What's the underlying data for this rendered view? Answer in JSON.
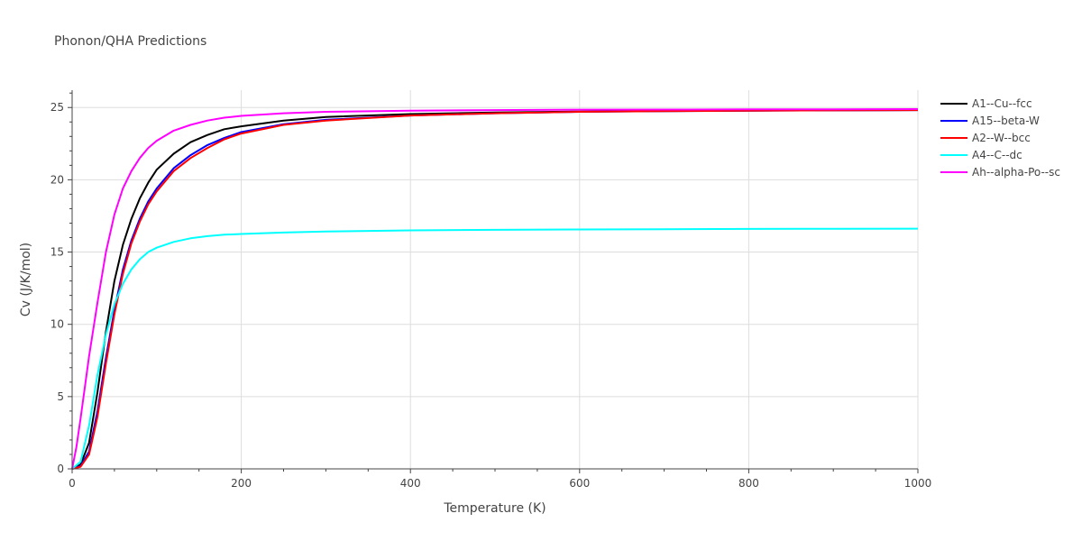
{
  "chart_data": {
    "type": "line",
    "title": "Phonon/QHA Predictions",
    "xlabel": "Temperature (K)",
    "ylabel": "Cv (J/K/mol)",
    "xlim": [
      0,
      1000
    ],
    "ylim": [
      0,
      26.2
    ],
    "x_ticks": [
      0,
      200,
      400,
      600,
      800,
      1000
    ],
    "y_ticks": [
      0,
      5,
      10,
      15,
      20,
      25
    ],
    "grid": true,
    "legend_position": "right",
    "series": [
      {
        "name": "A1--Cu--fcc",
        "color": "#000000",
        "x": [
          0,
          10,
          20,
          30,
          40,
          50,
          60,
          70,
          80,
          90,
          100,
          120,
          140,
          160,
          180,
          200,
          250,
          300,
          400,
          500,
          600,
          700,
          800,
          900,
          1000
        ],
        "y": [
          0,
          0.3,
          1.8,
          5.3,
          9.5,
          13.0,
          15.5,
          17.3,
          18.7,
          19.8,
          20.7,
          21.8,
          22.6,
          23.1,
          23.5,
          23.7,
          24.1,
          24.35,
          24.55,
          24.65,
          24.72,
          24.76,
          24.79,
          24.81,
          24.83
        ]
      },
      {
        "name": "A15--beta-W",
        "color": "#0000ff",
        "x": [
          0,
          10,
          20,
          30,
          40,
          50,
          60,
          70,
          80,
          90,
          100,
          120,
          140,
          160,
          180,
          200,
          250,
          300,
          400,
          500,
          600,
          700,
          800,
          900,
          1000
        ],
        "y": [
          0,
          0.2,
          1.2,
          4.0,
          7.7,
          11.0,
          13.8,
          15.8,
          17.3,
          18.5,
          19.4,
          20.8,
          21.7,
          22.4,
          22.9,
          23.3,
          23.85,
          24.15,
          24.45,
          24.6,
          24.7,
          24.75,
          24.78,
          24.8,
          24.82
        ]
      },
      {
        "name": "A2--W--bcc",
        "color": "#ff0000",
        "x": [
          0,
          10,
          20,
          30,
          40,
          50,
          60,
          70,
          80,
          90,
          100,
          120,
          140,
          160,
          180,
          200,
          250,
          300,
          400,
          500,
          600,
          700,
          800,
          900,
          1000
        ],
        "y": [
          0,
          0.15,
          1.0,
          3.6,
          7.3,
          10.7,
          13.5,
          15.6,
          17.1,
          18.3,
          19.2,
          20.6,
          21.5,
          22.2,
          22.8,
          23.2,
          23.8,
          24.1,
          24.45,
          24.6,
          24.7,
          24.75,
          24.78,
          24.8,
          24.82
        ]
      },
      {
        "name": "A4--C--dc",
        "color": "#00ffff",
        "x": [
          0,
          10,
          20,
          30,
          40,
          50,
          60,
          70,
          80,
          90,
          100,
          120,
          140,
          160,
          180,
          200,
          250,
          300,
          400,
          500,
          600,
          700,
          800,
          900,
          1000
        ],
        "y": [
          0,
          0.5,
          3.0,
          6.5,
          9.3,
          11.4,
          12.8,
          13.8,
          14.5,
          15.0,
          15.3,
          15.7,
          15.95,
          16.1,
          16.2,
          16.25,
          16.35,
          16.42,
          16.5,
          16.54,
          16.56,
          16.58,
          16.6,
          16.61,
          16.62
        ]
      },
      {
        "name": "Ah--alpha-Po--sc",
        "color": "#ff00ff",
        "x": [
          0,
          5,
          10,
          20,
          30,
          40,
          50,
          60,
          70,
          80,
          90,
          100,
          120,
          140,
          160,
          180,
          200,
          250,
          300,
          400,
          500,
          600,
          700,
          800,
          900,
          1000
        ],
        "y": [
          0,
          1.5,
          3.5,
          7.8,
          11.5,
          15.0,
          17.6,
          19.4,
          20.6,
          21.5,
          22.2,
          22.7,
          23.4,
          23.8,
          24.1,
          24.3,
          24.42,
          24.6,
          24.7,
          24.78,
          24.82,
          24.85,
          24.86,
          24.87,
          24.88,
          24.89
        ]
      }
    ]
  }
}
